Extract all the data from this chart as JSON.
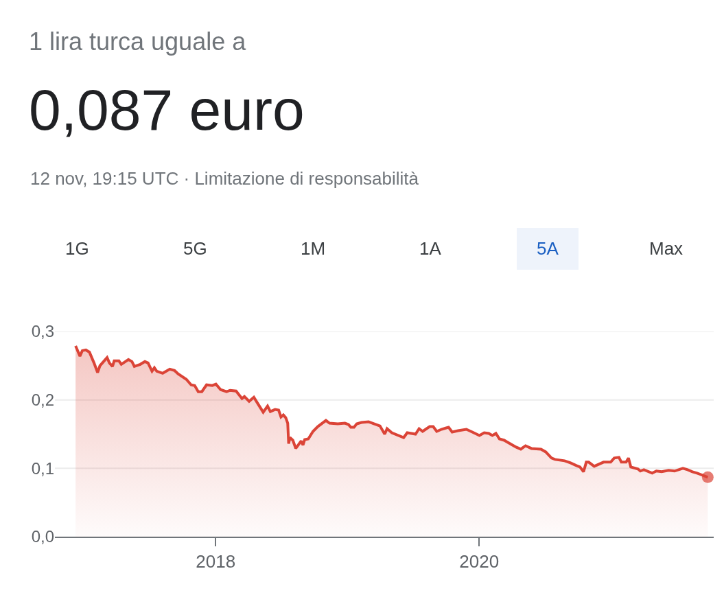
{
  "chart_data": {
    "type": "area",
    "title": "1 lira turca uguale a",
    "subtitle": "0,087 euro",
    "annotations": [
      "12 nov, 19:15 UTC · Limitazione di responsabilità",
      "1G",
      "5G",
      "1M",
      "1A",
      "5A",
      "Max"
    ],
    "series": [
      {
        "color": "#db4437",
        "x": [
          2016.937,
          2016.97,
          2016.988,
          2017.015,
          2017.042,
          2017.077,
          2017.104,
          2017.122,
          2017.176,
          2017.194,
          2017.217,
          2017.23,
          2017.266,
          2017.284,
          2017.338,
          2017.365,
          2017.383,
          2017.428,
          2017.463,
          2017.487,
          2017.517,
          2017.535,
          2017.553,
          2017.598,
          2017.652,
          2017.688,
          2017.715,
          2017.778,
          2017.814,
          2017.841,
          2017.868,
          2017.895,
          2017.931,
          2017.975,
          2018.002,
          2018.038,
          2018.083,
          2018.11,
          2018.155,
          2018.2,
          2018.218,
          2018.254,
          2018.29,
          2018.325,
          2018.361,
          2018.394,
          2018.415,
          2018.451,
          2018.478,
          2018.496,
          2018.514,
          2018.532,
          2018.547,
          2018.554,
          2018.564,
          2018.586,
          2018.608,
          2018.649,
          2018.663,
          2018.676,
          2018.703,
          2018.739,
          2018.775,
          2018.837,
          2018.864,
          2018.927,
          2018.981,
          2019.008,
          2019.026,
          2019.05,
          2019.071,
          2019.107,
          2019.161,
          2019.176,
          2019.247,
          2019.283,
          2019.301,
          2019.337,
          2019.427,
          2019.454,
          2019.517,
          2019.544,
          2019.571,
          2019.624,
          2019.651,
          2019.678,
          2019.714,
          2019.75,
          2019.768,
          2019.795,
          2019.84,
          2019.903,
          2019.948,
          2020.002,
          2020.038,
          2020.073,
          2020.1,
          2020.127,
          2020.154,
          2020.19,
          2020.208,
          2020.253,
          2020.28,
          2020.316,
          2020.352,
          2020.397,
          2020.469,
          2020.505,
          2020.549,
          2020.576,
          2020.648,
          2020.693,
          2020.738,
          2020.765,
          2020.792,
          2020.813,
          2020.831,
          2020.873,
          2020.944,
          2020.998,
          2021.025,
          2021.061,
          2021.079,
          2021.115,
          2021.133,
          2021.151,
          2021.205,
          2021.223,
          2021.25,
          2021.313,
          2021.345,
          2021.385,
          2021.438,
          2021.483,
          2021.546,
          2021.582,
          2021.618,
          2021.654,
          2021.735
        ],
        "values": [
          0.279,
          0.264,
          0.272,
          0.273,
          0.27,
          0.254,
          0.24,
          0.25,
          0.262,
          0.254,
          0.249,
          0.257,
          0.257,
          0.252,
          0.259,
          0.256,
          0.249,
          0.252,
          0.256,
          0.254,
          0.242,
          0.247,
          0.242,
          0.239,
          0.245,
          0.243,
          0.238,
          0.23,
          0.222,
          0.221,
          0.212,
          0.212,
          0.222,
          0.221,
          0.223,
          0.215,
          0.212,
          0.214,
          0.213,
          0.202,
          0.205,
          0.198,
          0.204,
          0.193,
          0.182,
          0.191,
          0.183,
          0.186,
          0.185,
          0.175,
          0.178,
          0.174,
          0.166,
          0.136,
          0.145,
          0.141,
          0.129,
          0.14,
          0.134,
          0.142,
          0.143,
          0.154,
          0.161,
          0.17,
          0.166,
          0.165,
          0.166,
          0.164,
          0.16,
          0.16,
          0.165,
          0.167,
          0.168,
          0.167,
          0.162,
          0.15,
          0.158,
          0.152,
          0.145,
          0.152,
          0.15,
          0.158,
          0.154,
          0.161,
          0.161,
          0.154,
          0.157,
          0.159,
          0.16,
          0.153,
          0.155,
          0.157,
          0.153,
          0.148,
          0.152,
          0.151,
          0.148,
          0.151,
          0.143,
          0.141,
          0.139,
          0.134,
          0.131,
          0.128,
          0.133,
          0.129,
          0.128,
          0.124,
          0.115,
          0.113,
          0.111,
          0.108,
          0.104,
          0.102,
          0.095,
          0.109,
          0.109,
          0.103,
          0.109,
          0.109,
          0.115,
          0.116,
          0.109,
          0.109,
          0.115,
          0.102,
          0.099,
          0.096,
          0.098,
          0.093,
          0.096,
          0.095,
          0.097,
          0.096,
          0.1,
          0.098,
          0.095,
          0.093,
          0.087
        ]
      }
    ],
    "xlim": [
      2016.78,
      2021.78
    ],
    "xticks": [
      2018,
      2020
    ],
    "ylim": [
      0,
      0.3
    ],
    "yticks": [
      {
        "value": 0,
        "label": "0,0"
      },
      {
        "value": 0.1,
        "label": "0,1"
      },
      {
        "value": 0.2,
        "label": "0,2"
      },
      {
        "value": 0.3,
        "label": "0,3"
      }
    ],
    "grid": "y"
  }
}
